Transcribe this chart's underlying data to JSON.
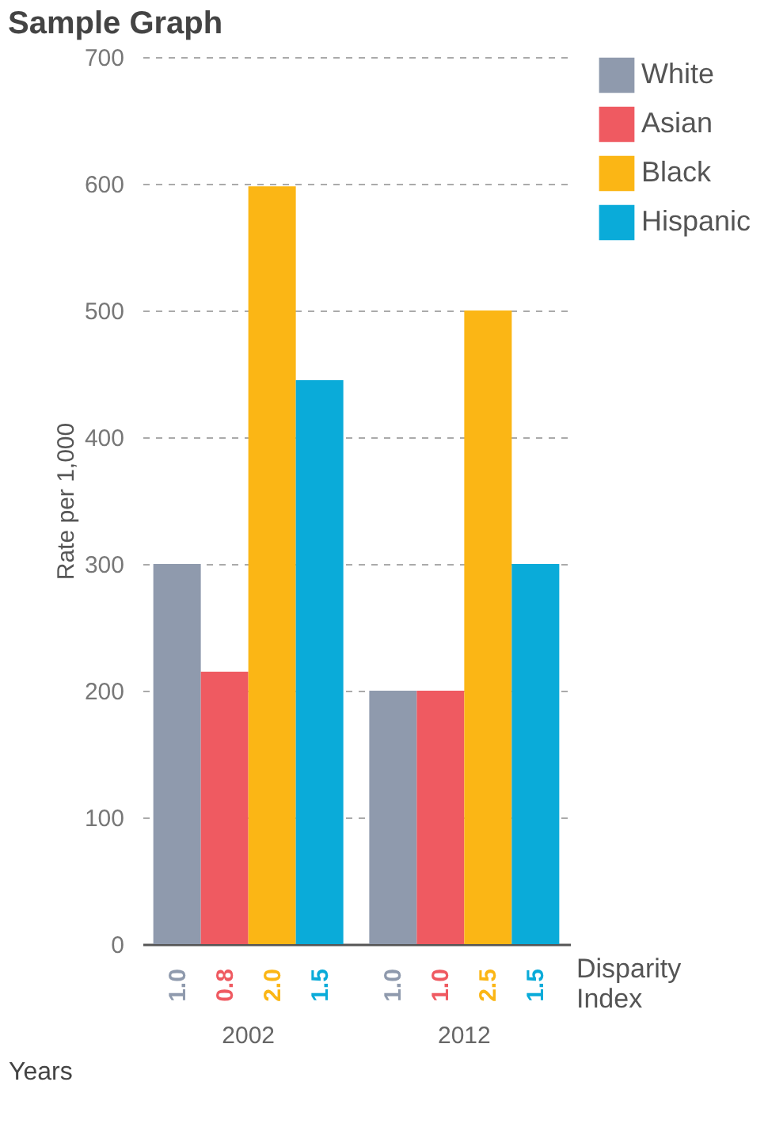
{
  "chart_data": {
    "type": "bar",
    "title": "Sample Graph",
    "xlabel": "Years",
    "ylabel": "Rate per 1,000",
    "categories": [
      "2002",
      "2012"
    ],
    "series": [
      {
        "name": "White",
        "color": "#8f9aad",
        "values": [
          300,
          200
        ]
      },
      {
        "name": "Asian",
        "color": "#ef5a61",
        "values": [
          215,
          200
        ]
      },
      {
        "name": "Black",
        "color": "#fbb615",
        "values": [
          598,
          500
        ]
      },
      {
        "name": "Hispanic",
        "color": "#0aabd9",
        "values": [
          445,
          300
        ]
      }
    ],
    "annotations": [
      "1.0",
      "0.8",
      "2.0",
      "1.5",
      "1.0",
      "1.0",
      "2.5",
      "1.5",
      "Disparity Index"
    ],
    "ylim": [
      0,
      700
    ],
    "yticks": [
      0,
      100,
      200,
      300,
      400,
      500,
      600,
      700
    ],
    "grid": "y",
    "legend": "top right"
  }
}
